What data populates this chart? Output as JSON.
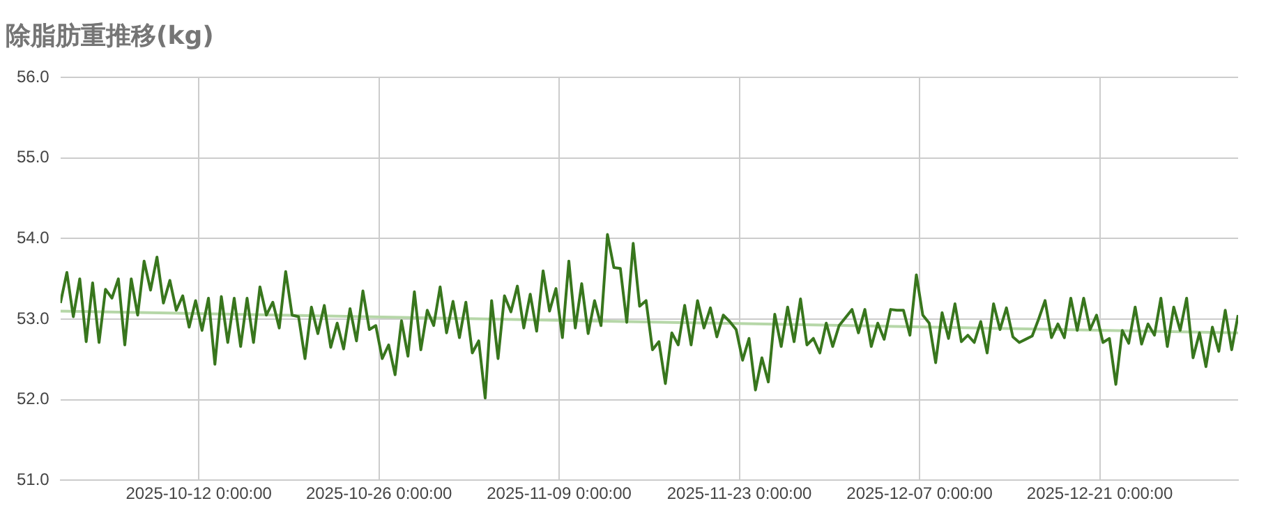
{
  "chart_data": {
    "type": "line",
    "title": "除脂肪重推移(kg)",
    "xlim": [
      "2025-10-01T06:00",
      "2025-12-31T18:00"
    ],
    "xticks": [
      {
        "value": "2025-10-12",
        "label": "2025-10-12 0:00:00"
      },
      {
        "value": "2025-10-26",
        "label": "2025-10-26 0:00:00"
      },
      {
        "value": "2025-11-09",
        "label": "2025-11-09 0:00:00"
      },
      {
        "value": "2025-11-23",
        "label": "2025-11-23 0:00:00"
      },
      {
        "value": "2025-12-07",
        "label": "2025-12-07 0:00:00"
      },
      {
        "value": "2025-12-21",
        "label": "2025-12-21 0:00:00"
      }
    ],
    "ylim": [
      51,
      56
    ],
    "yticks": [
      {
        "value": 51,
        "label": "51.0"
      },
      {
        "value": 52,
        "label": "52.0"
      },
      {
        "value": 53,
        "label": "53.0"
      },
      {
        "value": 54,
        "label": "54.0"
      },
      {
        "value": 55,
        "label": "55.0"
      },
      {
        "value": 56,
        "label": "56.0"
      }
    ],
    "grid": true,
    "legend": false,
    "marker": "none",
    "line_style": "solid",
    "series": [
      {
        "color": "#38761d",
        "x": [
          "2025-10-01T06:00",
          "2025-10-01T18:00",
          "2025-10-02T06:00",
          "2025-10-02T18:00",
          "2025-10-03T06:00",
          "2025-10-03T18:00",
          "2025-10-04T06:00",
          "2025-10-04T18:00",
          "2025-10-05T06:00",
          "2025-10-05T18:00",
          "2025-10-06T06:00",
          "2025-10-06T18:00",
          "2025-10-07T06:00",
          "2025-10-07T18:00",
          "2025-10-08T06:00",
          "2025-10-08T18:00",
          "2025-10-09T06:00",
          "2025-10-09T18:00",
          "2025-10-10T06:00",
          "2025-10-10T18:00",
          "2025-10-11T06:00",
          "2025-10-11T18:00",
          "2025-10-12T06:00",
          "2025-10-12T18:00",
          "2025-10-13T06:00",
          "2025-10-13T18:00",
          "2025-10-14T06:00",
          "2025-10-14T18:00",
          "2025-10-15T06:00",
          "2025-10-15T18:00",
          "2025-10-16T06:00",
          "2025-10-16T18:00",
          "2025-10-17T06:00",
          "2025-10-17T18:00",
          "2025-10-18T06:00",
          "2025-10-18T18:00",
          "2025-10-19T06:00",
          "2025-10-19T18:00",
          "2025-10-20T06:00",
          "2025-10-20T18:00",
          "2025-10-21T06:00",
          "2025-10-21T18:00",
          "2025-10-22T06:00",
          "2025-10-22T18:00",
          "2025-10-23T06:00",
          "2025-10-23T18:00",
          "2025-10-24T06:00",
          "2025-10-24T18:00",
          "2025-10-25T06:00",
          "2025-10-25T18:00",
          "2025-10-26T06:00",
          "2025-10-26T18:00",
          "2025-10-27T06:00",
          "2025-10-27T18:00",
          "2025-10-28T06:00",
          "2025-10-28T18:00",
          "2025-10-29T06:00",
          "2025-10-29T18:00",
          "2025-10-30T06:00",
          "2025-10-30T18:00",
          "2025-10-31T06:00",
          "2025-10-31T18:00",
          "2025-11-01T06:00",
          "2025-11-01T18:00",
          "2025-11-02T06:00",
          "2025-11-02T18:00",
          "2025-11-03T06:00",
          "2025-11-03T18:00",
          "2025-11-04T06:00",
          "2025-11-04T18:00",
          "2025-11-05T06:00",
          "2025-11-05T18:00",
          "2025-11-06T06:00",
          "2025-11-06T18:00",
          "2025-11-07T06:00",
          "2025-11-07T18:00",
          "2025-11-08T06:00",
          "2025-11-08T18:00",
          "2025-11-09T06:00",
          "2025-11-09T18:00",
          "2025-11-10T06:00",
          "2025-11-10T18:00",
          "2025-11-11T06:00",
          "2025-11-11T18:00",
          "2025-11-12T06:00",
          "2025-11-12T18:00",
          "2025-11-13T06:00",
          "2025-11-13T18:00",
          "2025-11-14T06:00",
          "2025-11-14T18:00",
          "2025-11-15T06:00",
          "2025-11-15T18:00",
          "2025-11-16T06:00",
          "2025-11-16T18:00",
          "2025-11-17T06:00",
          "2025-11-17T18:00",
          "2025-11-18T06:00",
          "2025-11-18T18:00",
          "2025-11-19T06:00",
          "2025-11-19T18:00",
          "2025-11-20T06:00",
          "2025-11-20T18:00",
          "2025-11-21T06:00",
          "2025-11-21T18:00",
          "2025-11-22T06:00",
          "2025-11-22T18:00",
          "2025-11-23T06:00",
          "2025-11-23T18:00",
          "2025-11-24T06:00",
          "2025-11-24T18:00",
          "2025-11-25T06:00",
          "2025-11-25T18:00",
          "2025-11-26T06:00",
          "2025-11-26T18:00",
          "2025-11-27T06:00",
          "2025-11-27T18:00",
          "2025-11-28T06:00",
          "2025-11-28T18:00",
          "2025-11-29T06:00",
          "2025-11-29T18:00",
          "2025-11-30T06:00",
          "2025-11-30T18:00",
          "2025-12-01T06:00",
          "2025-12-01T18:00",
          "2025-12-02T06:00",
          "2025-12-02T18:00",
          "2025-12-03T06:00",
          "2025-12-03T18:00",
          "2025-12-04T06:00",
          "2025-12-04T18:00",
          "2025-12-05T06:00",
          "2025-12-05T18:00",
          "2025-12-06T06:00",
          "2025-12-06T18:00",
          "2025-12-07T06:00",
          "2025-12-07T18:00",
          "2025-12-08T06:00",
          "2025-12-08T18:00",
          "2025-12-09T06:00",
          "2025-12-09T18:00",
          "2025-12-10T06:00",
          "2025-12-10T18:00",
          "2025-12-11T06:00",
          "2025-12-11T18:00",
          "2025-12-12T06:00",
          "2025-12-12T18:00",
          "2025-12-13T06:00",
          "2025-12-13T18:00",
          "2025-12-14T06:00",
          "2025-12-14T18:00",
          "2025-12-15T06:00",
          "2025-12-15T18:00",
          "2025-12-16T06:00",
          "2025-12-16T18:00",
          "2025-12-17T06:00",
          "2025-12-17T18:00",
          "2025-12-18T06:00",
          "2025-12-18T18:00",
          "2025-12-19T06:00",
          "2025-12-19T18:00",
          "2025-12-20T06:00",
          "2025-12-20T18:00",
          "2025-12-21T06:00",
          "2025-12-21T18:00",
          "2025-12-22T06:00",
          "2025-12-22T18:00",
          "2025-12-23T06:00",
          "2025-12-23T18:00",
          "2025-12-24T06:00",
          "2025-12-24T18:00",
          "2025-12-25T06:00",
          "2025-12-25T18:00",
          "2025-12-26T06:00",
          "2025-12-26T18:00",
          "2025-12-27T06:00",
          "2025-12-27T18:00",
          "2025-12-28T06:00",
          "2025-12-28T18:00",
          "2025-12-29T06:00",
          "2025-12-29T18:00",
          "2025-12-30T06:00",
          "2025-12-30T18:00",
          "2025-12-31T06:00",
          "2025-12-31T18:00"
        ],
        "values": [
          53.2,
          53.58,
          53.03,
          53.5,
          52.72,
          53.45,
          52.71,
          53.37,
          53.26,
          53.5,
          52.68,
          53.5,
          53.05,
          53.72,
          53.36,
          53.77,
          53.2,
          53.48,
          53.11,
          53.29,
          52.9,
          53.23,
          52.86,
          53.26,
          52.44,
          53.28,
          52.71,
          53.26,
          52.66,
          53.26,
          52.71,
          53.4,
          53.05,
          53.21,
          52.89,
          53.59,
          53.05,
          53.03,
          52.51,
          53.15,
          52.82,
          53.17,
          52.65,
          52.95,
          52.63,
          53.13,
          52.73,
          53.35,
          52.87,
          52.92,
          52.51,
          52.68,
          52.31,
          52.98,
          52.54,
          53.34,
          52.62,
          53.11,
          52.92,
          53.4,
          52.83,
          53.22,
          52.77,
          53.21,
          52.58,
          52.73,
          52.02,
          53.23,
          52.51,
          53.29,
          53.09,
          53.41,
          52.89,
          53.31,
          52.85,
          53.6,
          53.1,
          53.38,
          52.77,
          53.72,
          52.89,
          53.44,
          52.82,
          53.23,
          52.92,
          54.05,
          53.64,
          53.63,
          52.96,
          53.94,
          53.16,
          53.23,
          52.62,
          52.72,
          52.2,
          52.83,
          52.68,
          53.17,
          52.68,
          53.23,
          52.89,
          53.14,
          52.78,
          53.05,
          52.97,
          52.87,
          52.49,
          52.76,
          52.12,
          52.52,
          52.22,
          53.06,
          52.66,
          53.15,
          52.72,
          53.25,
          52.68,
          52.76,
          52.58,
          52.95,
          52.66,
          52.92,
          53.02,
          53.12,
          52.83,
          53.12,
          52.66,
          52.95,
          52.75,
          53.12,
          53.11,
          53.11,
          52.8,
          53.55,
          53.05,
          52.95,
          52.46,
          53.08,
          52.76,
          53.19,
          52.72,
          52.8,
          52.71,
          52.97,
          52.58,
          53.19,
          52.87,
          53.14,
          52.78,
          52.71,
          52.75,
          52.79,
          53.0,
          53.23,
          52.77,
          52.94,
          52.77,
          53.26,
          52.86,
          53.26,
          52.87,
          53.05,
          52.71,
          52.76,
          52.19,
          52.86,
          52.7,
          53.15,
          52.69,
          52.94,
          52.8,
          53.26,
          52.66,
          53.15,
          52.86,
          53.26,
          52.52,
          52.83,
          52.41,
          52.9,
          52.6,
          53.11,
          52.62,
          53.05
        ]
      },
      {
        "type": "line",
        "color": "#b6d7a8",
        "x": [
          "2025-10-01T06:00",
          "2025-12-31T18:00"
        ],
        "values": [
          53.1,
          52.83
        ]
      }
    ]
  }
}
